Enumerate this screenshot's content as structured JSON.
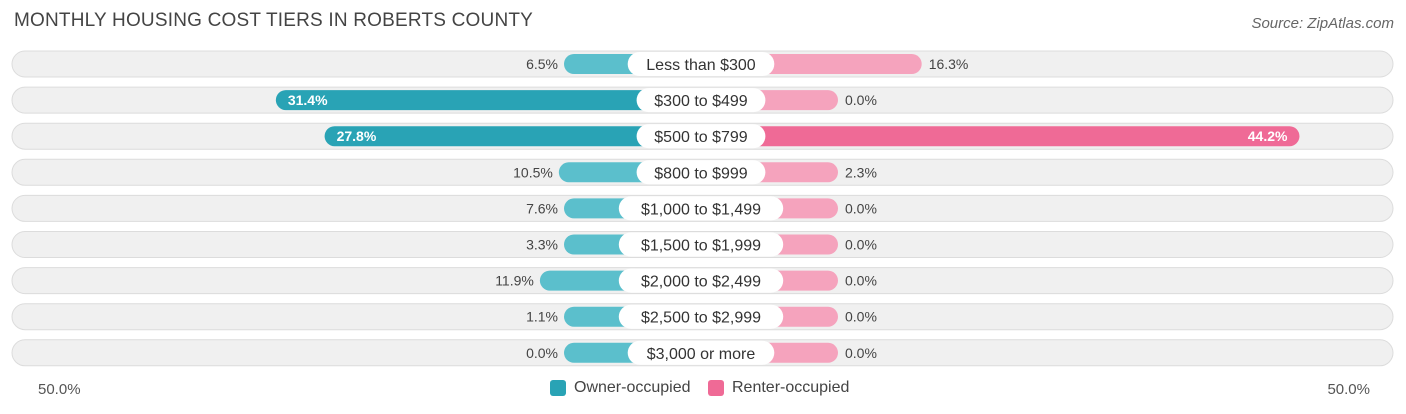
{
  "header": {
    "title": "MONTHLY HOUSING COST TIERS IN ROBERTS COUNTY",
    "source": "Source: ZipAtlas.com"
  },
  "colors": {
    "owner": "#5bbfcc",
    "owner_strong": "#29a3b5",
    "renter": "#f5a3bd",
    "renter_strong": "#ef6a96",
    "row_bg": "#f0f0f0",
    "row_border": "#dcdcdc"
  },
  "axis": {
    "left_label": "50.0%",
    "right_label": "50.0%"
  },
  "legend": {
    "owner_label": "Owner-occupied",
    "renter_label": "Renter-occupied"
  },
  "chart_data": {
    "type": "bar",
    "orientation": "horizontal-diverging",
    "title": "MONTHLY HOUSING COST TIERS IN ROBERTS COUNTY",
    "categories": [
      "Less than $300",
      "$300 to $499",
      "$500 to $799",
      "$800 to $999",
      "$1,000 to $1,499",
      "$1,500 to $1,999",
      "$2,000 to $2,499",
      "$2,500 to $2,999",
      "$3,000 or more"
    ],
    "series": [
      {
        "name": "Owner-occupied",
        "values": [
          6.5,
          31.4,
          27.8,
          10.5,
          7.6,
          3.3,
          11.9,
          1.1,
          0.0
        ],
        "labels": [
          "6.5%",
          "31.4%",
          "27.8%",
          "10.5%",
          "7.6%",
          "3.3%",
          "11.9%",
          "1.1%",
          "0.0%"
        ]
      },
      {
        "name": "Renter-occupied",
        "values": [
          16.3,
          0.0,
          44.2,
          2.3,
          0.0,
          0.0,
          0.0,
          0.0,
          0.0
        ],
        "labels": [
          "16.3%",
          "0.0%",
          "44.2%",
          "2.3%",
          "0.0%",
          "0.0%",
          "0.0%",
          "0.0%",
          "0.0%"
        ]
      }
    ],
    "xlim": [
      -50,
      50
    ],
    "legend_position": "bottom-center"
  }
}
